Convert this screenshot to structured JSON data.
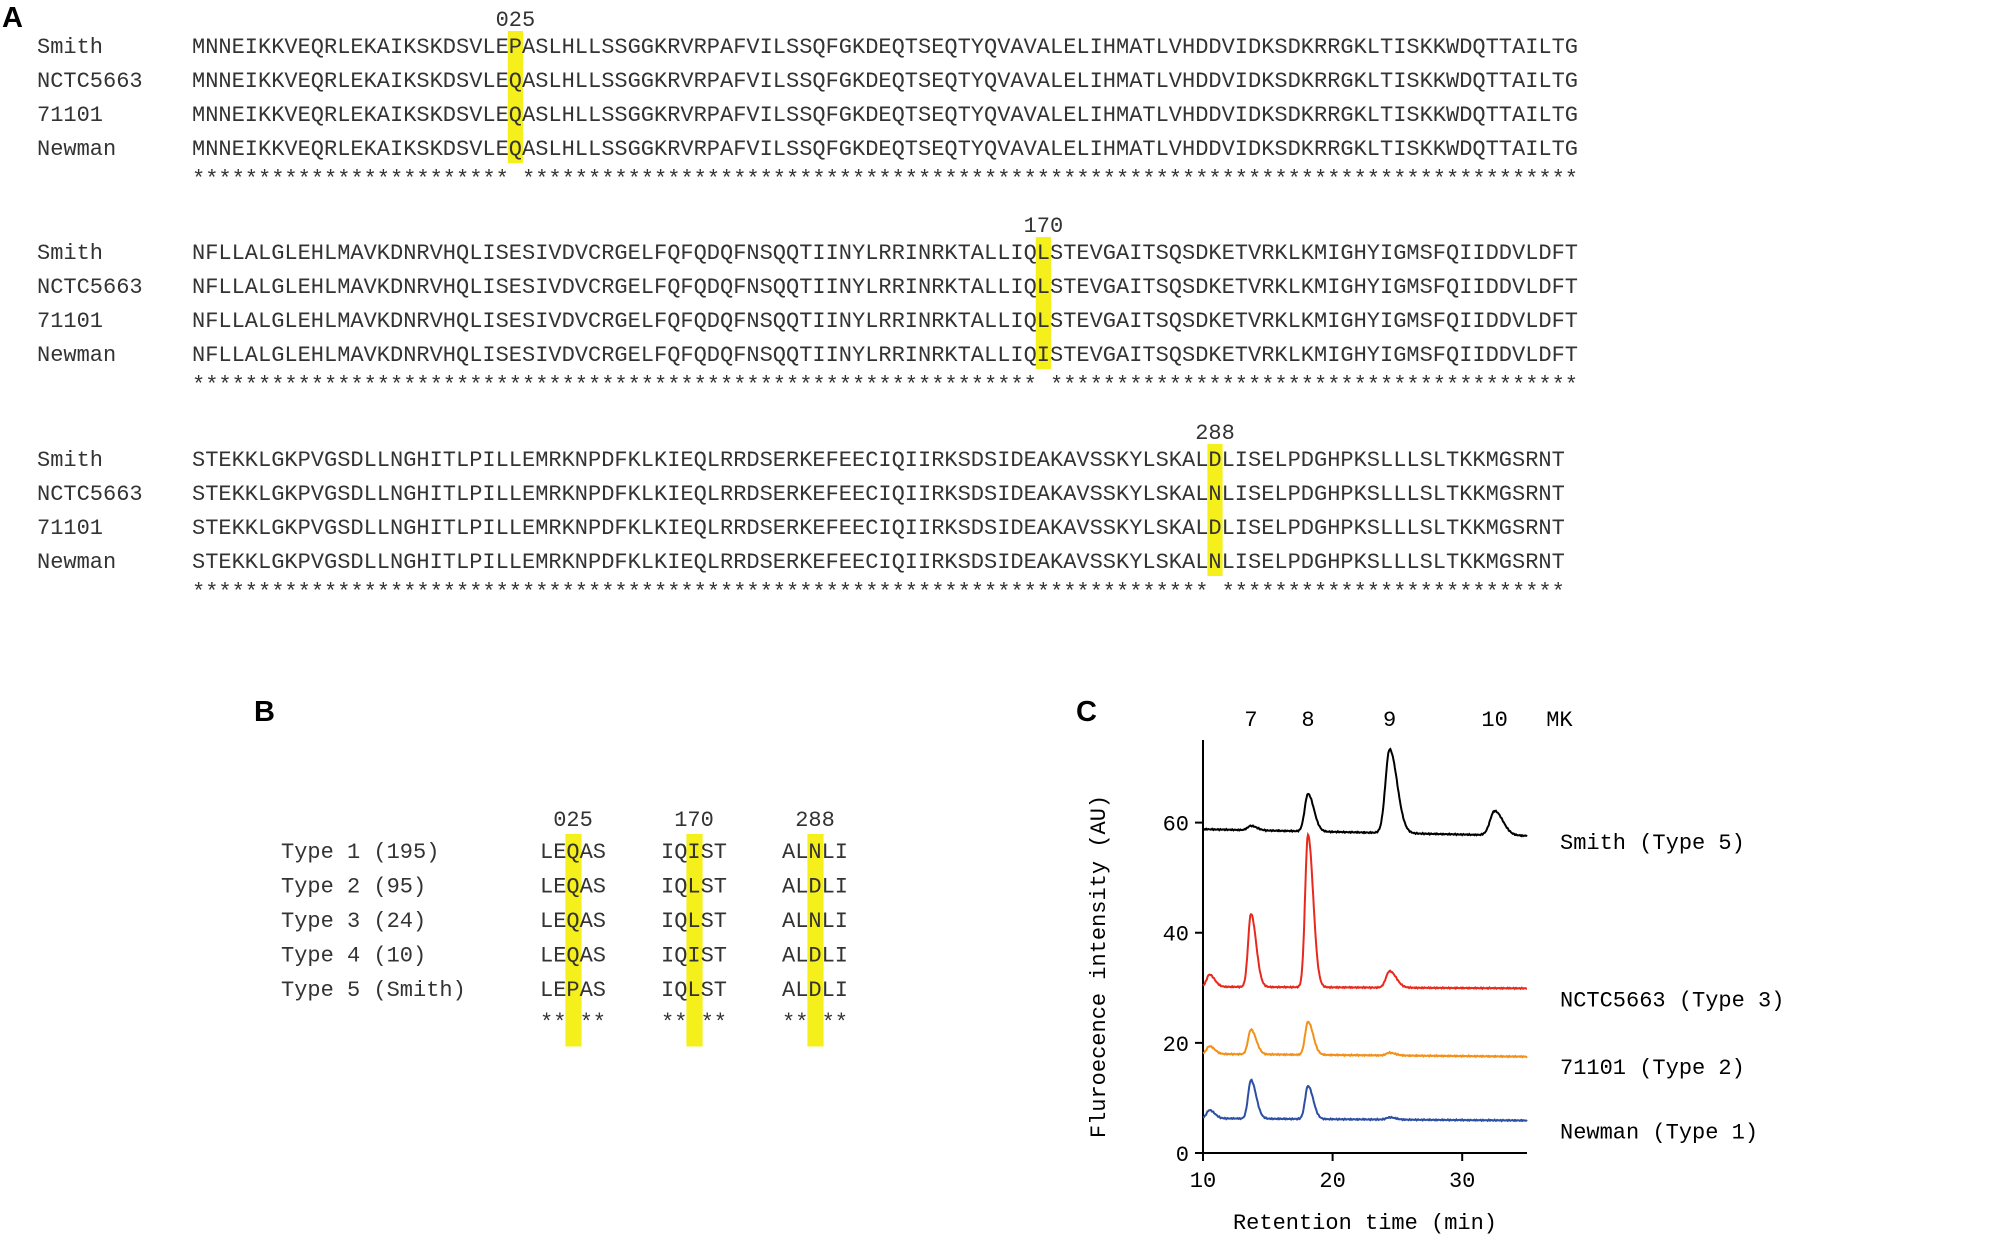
{
  "panels": {
    "a": "A",
    "b": "B",
    "c": "C"
  },
  "alignment": {
    "blocks": [
      {
        "marker": "025",
        "rows": [
          {
            "name": "Smith",
            "pre": "MNNEIKKVEQRLEKAIKSKDSVLE",
            "hl": "P",
            "post": "ASLHLLSSGGKRVRPAFVILSSQFGKDEQTSEQTYQVAVALELIHMATLVHDDVIDKSDKRRGKLTISKKWDQTTAILTG"
          },
          {
            "name": "NCTC5663",
            "pre": "MNNEIKKVEQRLEKAIKSKDSVLE",
            "hl": "Q",
            "post": "ASLHLLSSGGKRVRPAFVILSSQFGKDEQTSEQTYQVAVALELIHMATLVHDDVIDKSDKRRGKLTISKKWDQTTAILTG"
          },
          {
            "name": "71101",
            "pre": "MNNEIKKVEQRLEKAIKSKDSVLE",
            "hl": "Q",
            "post": "ASLHLLSSGGKRVRPAFVILSSQFGKDEQTSEQTYQVAVALELIHMATLVHDDVIDKSDKRRGKLTISKKWDQTTAILTG"
          },
          {
            "name": "Newman",
            "pre": "MNNEIKKVEQRLEKAIKSKDSVLE",
            "hl": "Q",
            "post": "ASLHLLSSGGKRVRPAFVILSSQFGKDEQTSEQTYQVAVALELIHMATLVHDDVIDKSDKRRGKLTISKKWDQTTAILTG"
          }
        ],
        "consensus": "************************ ********************************************************************************"
      },
      {
        "marker": "170",
        "rows": [
          {
            "name": "Smith",
            "pre": "NFLLALGLEHLMAVKDNRVHQLISESIVDVCRGELFQFQDQFNSQQTIINYLRRINRKTALLIQ",
            "hl": "L",
            "post": "STEVGAITSQSDKETVRKLKMIGHYIGMSFQIIDDVLDFT"
          },
          {
            "name": "NCTC5663",
            "pre": "NFLLALGLEHLMAVKDNRVHQLISESIVDVCRGELFQFQDQFNSQQTIINYLRRINRKTALLIQ",
            "hl": "L",
            "post": "STEVGAITSQSDKETVRKLKMIGHYIGMSFQIIDDVLDFT"
          },
          {
            "name": "71101",
            "pre": "NFLLALGLEHLMAVKDNRVHQLISESIVDVCRGELFQFQDQFNSQQTIINYLRRINRKTALLIQ",
            "hl": "L",
            "post": "STEVGAITSQSDKETVRKLKMIGHYIGMSFQIIDDVLDFT"
          },
          {
            "name": "Newman",
            "pre": "NFLLALGLEHLMAVKDNRVHQLISESIVDVCRGELFQFQDQFNSQQTIINYLRRINRKTALLIQ",
            "hl": "I",
            "post": "STEVGAITSQSDKETVRKLKMIGHYIGMSFQIIDDVLDFT"
          }
        ],
        "consensus": "**************************************************************** ****************************************"
      },
      {
        "marker": "288",
        "rows": [
          {
            "name": "Smith",
            "pre": "STEKKLGKPVGSDLLNGHITLPILLEMRKNPDFKLKIEQLRRDSERKEFEECIQIIRKSDSIDEAKAVSSKYLSKAL",
            "hl": "D",
            "post": "LISELPDGHPKSLLLSLTKKMGSRNT"
          },
          {
            "name": "NCTC5663",
            "pre": "STEKKLGKPVGSDLLNGHITLPILLEMRKNPDFKLKIEQLRRDSERKEFEECIQIIRKSDSIDEAKAVSSKYLSKAL",
            "hl": "N",
            "post": "LISELPDGHPKSLLLSLTKKMGSRNT"
          },
          {
            "name": "71101",
            "pre": "STEKKLGKPVGSDLLNGHITLPILLEMRKNPDFKLKIEQLRRDSERKEFEECIQIIRKSDSIDEAKAVSSKYLSKAL",
            "hl": "D",
            "post": "LISELPDGHPKSLLLSLTKKMGSRNT"
          },
          {
            "name": "Newman",
            "pre": "STEKKLGKPVGSDLLNGHITLPILLEMRKNPDFKLKIEQLRRDSERKEFEECIQIIRKSDSIDEAKAVSSKYLSKAL",
            "hl": "N",
            "post": "LISELPDGHPKSLLLSLTKKMGSRNT"
          }
        ],
        "consensus": "***************************************************************************** **************************"
      }
    ]
  },
  "types": {
    "markers": [
      "025",
      "170",
      "288"
    ],
    "rows": [
      {
        "label": "Type 1 (195)",
        "seqs": [
          [
            "LE",
            "Q",
            "AS"
          ],
          [
            "IQ",
            "I",
            "ST"
          ],
          [
            "AL",
            "N",
            "LI"
          ]
        ]
      },
      {
        "label": "Type 2 (95)",
        "seqs": [
          [
            "LE",
            "Q",
            "AS"
          ],
          [
            "IQ",
            "L",
            "ST"
          ],
          [
            "AL",
            "D",
            "LI"
          ]
        ]
      },
      {
        "label": "Type 3 (24)",
        "seqs": [
          [
            "LE",
            "Q",
            "AS"
          ],
          [
            "IQ",
            "L",
            "ST"
          ],
          [
            "AL",
            "N",
            "LI"
          ]
        ]
      },
      {
        "label": "Type 4 (10)",
        "seqs": [
          [
            "LE",
            "Q",
            "AS"
          ],
          [
            "IQ",
            "I",
            "ST"
          ],
          [
            "AL",
            "D",
            "LI"
          ]
        ]
      },
      {
        "label": "Type 5 (Smith)",
        "seqs": [
          [
            "LE",
            "P",
            "AS"
          ],
          [
            "IQ",
            "L",
            "ST"
          ],
          [
            "AL",
            "D",
            "LI"
          ]
        ]
      }
    ],
    "consensus": [
      "** **",
      "** **",
      "** **"
    ]
  },
  "chart_data": {
    "type": "line",
    "xlabel": "Retention time (min)",
    "ylabel": "Fluroecence intensity (AU)",
    "xlim": [
      10,
      35
    ],
    "ylim": [
      0,
      75
    ],
    "xticks": [
      10,
      20,
      30
    ],
    "yticks": [
      0,
      20,
      40,
      60
    ],
    "top_labels": [
      {
        "text": "7",
        "x": 13.7
      },
      {
        "text": "8",
        "x": 18.1
      },
      {
        "text": "9",
        "x": 24.4
      },
      {
        "text": "10",
        "x": 32.5
      },
      {
        "text": "MK",
        "x": 37.5
      }
    ],
    "series": [
      {
        "name": "Smith (Type 5)",
        "color": "#000000",
        "baseline": 58.8,
        "end": 57.6,
        "peaks": [
          {
            "x": 13.7,
            "h": 0.8,
            "w": 0.25
          },
          {
            "x": 18.1,
            "h": 6.8,
            "w": 0.25
          },
          {
            "x": 24.4,
            "h": 15.2,
            "w": 0.32
          },
          {
            "x": 32.5,
            "h": 4.4,
            "w": 0.35
          }
        ]
      },
      {
        "name": "NCTC5663 (Type 3)",
        "color": "#e8291c",
        "baseline": 30.2,
        "end": 29.9,
        "peaks": [
          {
            "x": 10.5,
            "h": 2.2,
            "w": 0.22
          },
          {
            "x": 13.7,
            "h": 13.3,
            "w": 0.22
          },
          {
            "x": 18.1,
            "h": 27.7,
            "w": 0.22
          },
          {
            "x": 24.4,
            "h": 3.0,
            "w": 0.28
          }
        ]
      },
      {
        "name": "71101 (Type 2)",
        "color": "#f39019",
        "baseline": 18.0,
        "end": 17.5,
        "peaks": [
          {
            "x": 10.5,
            "h": 1.4,
            "w": 0.22
          },
          {
            "x": 13.7,
            "h": 4.5,
            "w": 0.22
          },
          {
            "x": 18.1,
            "h": 6.0,
            "w": 0.22
          },
          {
            "x": 24.4,
            "h": 0.5,
            "w": 0.25
          }
        ]
      },
      {
        "name": "Newman (Type 1)",
        "color": "#2c4ea3",
        "baseline": 6.3,
        "end": 5.9,
        "peaks": [
          {
            "x": 10.5,
            "h": 1.5,
            "w": 0.22
          },
          {
            "x": 13.7,
            "h": 7.0,
            "w": 0.22
          },
          {
            "x": 18.1,
            "h": 6.0,
            "w": 0.22
          },
          {
            "x": 24.4,
            "h": 0.4,
            "w": 0.25
          }
        ]
      }
    ]
  }
}
